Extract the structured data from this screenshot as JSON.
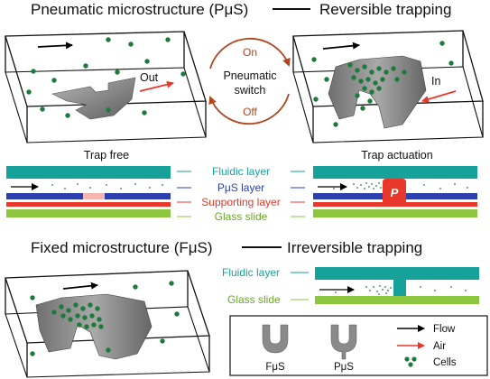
{
  "sections": {
    "pneumatic_title": "Pneumatic  microstructure (PμS)",
    "reversible_title": "Reversible trapping",
    "fixed_title": "Fixed microstructure (FμS)",
    "irreversible_title": "Irreversible trapping"
  },
  "switch": {
    "on": "On",
    "off": "Off",
    "line1": "Pneumatic",
    "line2": "switch"
  },
  "boxes": {
    "out": "Out",
    "in": "In",
    "trap_free": "Trap free",
    "trap_actuation": "Trap actuation",
    "p_label": "P"
  },
  "layers": {
    "fluidic": "Fluidic layer",
    "pus": "PμS layer",
    "supporting": "Supporting layer",
    "glass": "Glass slide"
  },
  "fixed_layers": {
    "fluidic": "Fluidic layer",
    "glass": "Glass slide"
  },
  "legend": {
    "fus": "FμS",
    "pus": "PμS",
    "flow": "Flow",
    "air": "Air",
    "cells": "Cells"
  },
  "colors": {
    "fluidic": "#16a29a",
    "pus_layer": "#2b3faf",
    "supporting": "#e8372b",
    "glass": "#8cc63f",
    "cell": "#1e7a3a",
    "air_arrow": "#e8372b",
    "switch_arrow": "#b0461e",
    "divider_teal": "#16a29a"
  }
}
